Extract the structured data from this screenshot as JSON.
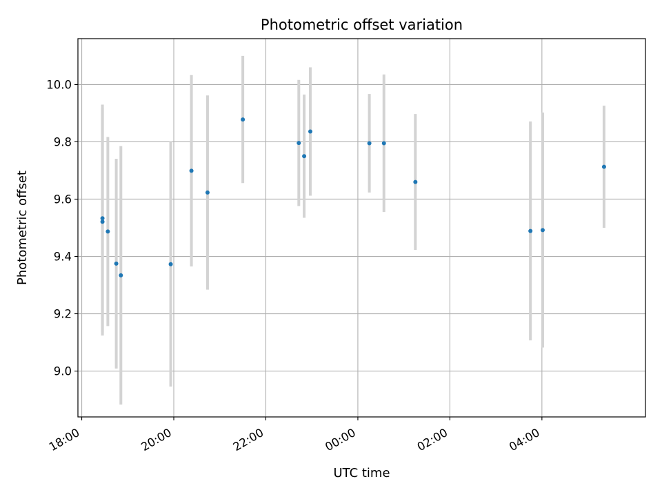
{
  "chart_data": {
    "type": "scatter",
    "title": "Photometric offset variation",
    "xlabel": "UTC time",
    "ylabel": "Photometric offset",
    "x_axis_type": "time",
    "xlim": [
      "2000-01-01T17:55",
      "2000-01-02T06:15"
    ],
    "ylim": [
      8.84,
      10.16
    ],
    "x_ticks": [
      {
        "value": "2000-01-01T18:00",
        "label": "18:00"
      },
      {
        "value": "2000-01-01T20:00",
        "label": "20:00"
      },
      {
        "value": "2000-01-01T22:00",
        "label": "22:00"
      },
      {
        "value": "2000-01-02T00:00",
        "label": "00:00"
      },
      {
        "value": "2000-01-02T02:00",
        "label": "02:00"
      },
      {
        "value": "2000-01-02T04:00",
        "label": "04:00"
      }
    ],
    "y_ticks": [
      {
        "value": 9.0,
        "label": "9.0"
      },
      {
        "value": 9.2,
        "label": "9.2"
      },
      {
        "value": 9.4,
        "label": "9.4"
      },
      {
        "value": 9.6,
        "label": "9.6"
      },
      {
        "value": 9.8,
        "label": "9.8"
      },
      {
        "value": 10.0,
        "label": "10.0"
      }
    ],
    "grid": true,
    "point_color": "#1f77b4",
    "errorbar_color": "#d3d3d3",
    "points": [
      {
        "x": "2000-01-01T18:27",
        "y": 9.533,
        "err": 0.397
      },
      {
        "x": "2000-01-01T18:27",
        "y": 9.521,
        "err": 0.397
      },
      {
        "x": "2000-01-01T18:34",
        "y": 9.487,
        "err": 0.33
      },
      {
        "x": "2000-01-01T18:45",
        "y": 9.375,
        "err": 0.366
      },
      {
        "x": "2000-01-01T18:51",
        "y": 9.334,
        "err": 0.451
      },
      {
        "x": "2000-01-01T19:56",
        "y": 9.373,
        "err": 0.427
      },
      {
        "x": "2000-01-01T20:23",
        "y": 9.699,
        "err": 0.334
      },
      {
        "x": "2000-01-01T20:44",
        "y": 9.623,
        "err": 0.339
      },
      {
        "x": "2000-01-01T21:30",
        "y": 9.878,
        "err": 0.222
      },
      {
        "x": "2000-01-01T22:43",
        "y": 9.796,
        "err": 0.22
      },
      {
        "x": "2000-01-01T22:50",
        "y": 9.75,
        "err": 0.215
      },
      {
        "x": "2000-01-01T22:58",
        "y": 9.836,
        "err": 0.224
      },
      {
        "x": "2000-01-02T00:15",
        "y": 9.795,
        "err": 0.172
      },
      {
        "x": "2000-01-02T00:34",
        "y": 9.795,
        "err": 0.24
      },
      {
        "x": "2000-01-02T01:15",
        "y": 9.66,
        "err": 0.237
      },
      {
        "x": "2000-01-02T03:45",
        "y": 9.489,
        "err": 0.382
      },
      {
        "x": "2000-01-02T04:01",
        "y": 9.492,
        "err": 0.41
      },
      {
        "x": "2000-01-02T05:21",
        "y": 9.713,
        "err": 0.213
      }
    ]
  }
}
